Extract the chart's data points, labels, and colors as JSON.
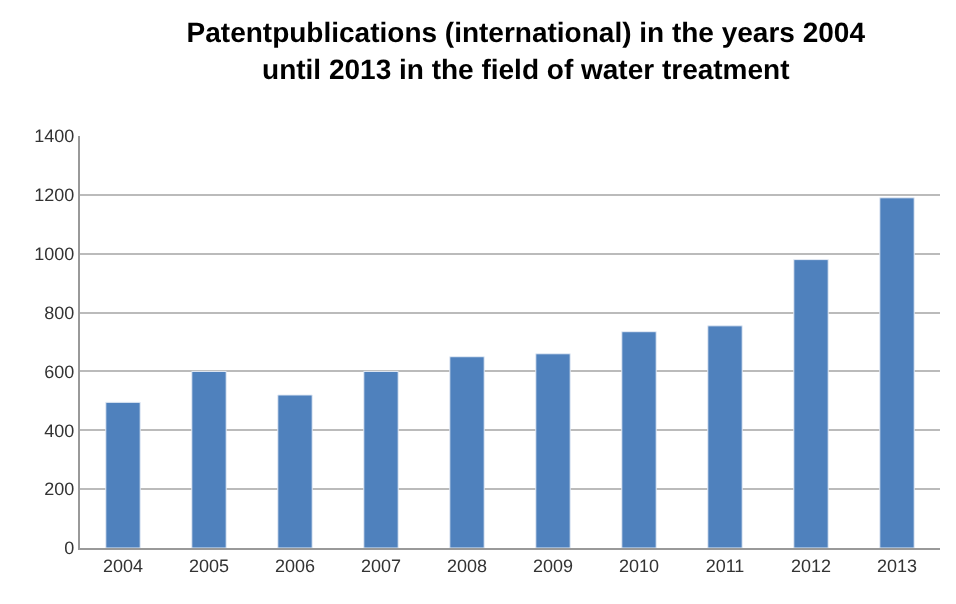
{
  "chart_data": {
    "type": "bar",
    "title": "Patentpublications (international) in the years 2004\nuntil 2013 in the field of water treatment",
    "categories": [
      "2004",
      "2005",
      "2006",
      "2007",
      "2008",
      "2009",
      "2010",
      "2011",
      "2012",
      "2013"
    ],
    "values": [
      495,
      600,
      520,
      600,
      650,
      660,
      735,
      755,
      980,
      1190
    ],
    "color": "#4f81bd",
    "ylim": [
      0,
      1400
    ],
    "yticks": [
      0,
      200,
      400,
      600,
      800,
      1000,
      1200,
      1400
    ],
    "grid": "y",
    "legend": false
  }
}
